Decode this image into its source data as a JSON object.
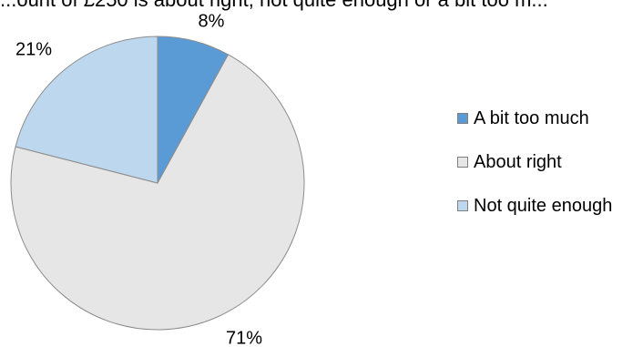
{
  "chart_data": {
    "type": "pie",
    "title": "...ount of £250 is about right, not quite enough or a bit too m...",
    "categories": [
      "A bit too much",
      "About right",
      "Not quite enough"
    ],
    "values": [
      8,
      71,
      21
    ],
    "data_labels": [
      "8%",
      "71%",
      "21%"
    ],
    "colors": [
      "#5b9bd5",
      "#e7e6e6",
      "#bdd7ee"
    ],
    "legend_position": "right",
    "start_angle_deg": 0,
    "direction": "clockwise"
  }
}
